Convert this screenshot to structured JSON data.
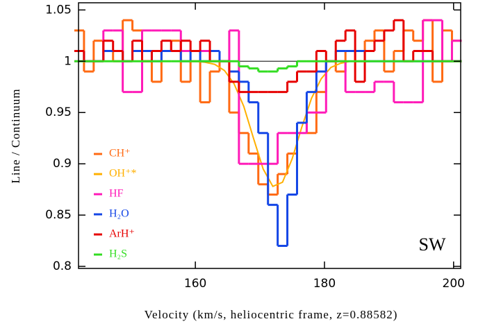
{
  "chart_data": {
    "type": "line",
    "xlabel": "Velocity (km/s, heliocentric frame, z=0.88582)",
    "ylabel": "Line / Continuum",
    "annotation": "SW",
    "xlim": [
      141.9,
      201.1
    ],
    "ylim": [
      0.798,
      1.057
    ],
    "xticks": [
      160,
      180,
      200
    ],
    "yticks": [
      0.8,
      0.85,
      0.9,
      0.95,
      1,
      1.05
    ],
    "hline": 1,
    "legend": "lower left",
    "x": [
      142,
      143.5,
      145,
      146.5,
      148,
      149.5,
      151,
      152.5,
      154,
      155.5,
      157,
      158.5,
      160,
      161.5,
      163,
      164.5,
      166,
      167.5,
      169,
      170.5,
      172,
      173.5,
      175,
      176.5,
      178,
      179.5,
      181,
      182.5,
      184,
      185.5,
      187,
      188.5,
      190,
      191.5,
      193,
      194.5,
      196,
      197.5,
      199,
      200.5
    ],
    "series": [
      {
        "name": "CH⁺",
        "color": "#ff6a13",
        "step": true,
        "values": [
          1.03,
          0.99,
          1.02,
          1.01,
          1.0,
          1.04,
          1.03,
          1.0,
          0.98,
          1.01,
          1.02,
          0.98,
          1.0,
          0.96,
          0.99,
          1.0,
          0.95,
          0.93,
          0.91,
          0.88,
          0.87,
          0.89,
          0.91,
          0.94,
          0.93,
          0.97,
          1.0,
          0.99,
          1.01,
          1.0,
          1.02,
          1.03,
          0.99,
          1.01,
          1.03,
          1.02,
          1.04,
          0.98,
          1.03,
          1.02
        ]
      },
      {
        "name": "OH⁺*",
        "color": "#ffb000",
        "step": false,
        "values": [
          1.0,
          1.0,
          1.0,
          1.0,
          1.0,
          1.0,
          1.0,
          1.0,
          1.0,
          1.0,
          1.0,
          1.0,
          1.0,
          0.999,
          0.997,
          0.991,
          0.978,
          0.956,
          0.925,
          0.895,
          0.878,
          0.882,
          0.905,
          0.936,
          0.964,
          0.983,
          0.994,
          0.998,
          1.0,
          1.0,
          1.0,
          1.0,
          1.0,
          1.0,
          1.0,
          1.0,
          1.0,
          1.0,
          1.0,
          1.0
        ]
      },
      {
        "name": "HF",
        "color": "#ff1ab8",
        "step": true,
        "values": [
          1.0,
          1.0,
          1.0,
          1.03,
          1.03,
          0.97,
          0.97,
          1.03,
          1.03,
          1.03,
          1.03,
          1.01,
          1.01,
          1.01,
          1.01,
          1.0,
          1.03,
          0.9,
          0.9,
          0.9,
          0.9,
          0.93,
          0.93,
          0.93,
          0.95,
          0.95,
          1.0,
          1.0,
          0.97,
          0.97,
          0.97,
          0.98,
          0.98,
          0.96,
          0.96,
          0.96,
          1.04,
          1.04,
          1.0,
          1.02
        ]
      },
      {
        "name": "H₂O",
        "color": "#1446e6",
        "step": true,
        "values": [
          1.01,
          1.0,
          1.0,
          1.01,
          1.01,
          1.0,
          1.01,
          1.01,
          1.0,
          1.01,
          1.01,
          1.0,
          1.01,
          1.0,
          1.01,
          1.0,
          0.99,
          0.98,
          0.96,
          0.93,
          0.86,
          0.82,
          0.87,
          0.94,
          0.97,
          0.99,
          1.0,
          1.01,
          1.01,
          1.01,
          1.0,
          1.0,
          1.0,
          1.0,
          1.0,
          1.0,
          1.0,
          1.0,
          1.0,
          1.0
        ]
      },
      {
        "name": "ArH⁺",
        "color": "#e60000",
        "step": true,
        "values": [
          1.01,
          1.0,
          1.0,
          1.02,
          1.01,
          1.0,
          1.02,
          1.0,
          1.01,
          1.02,
          1.01,
          1.02,
          1.01,
          1.02,
          1.0,
          1.0,
          0.98,
          0.97,
          0.97,
          0.97,
          0.97,
          0.97,
          0.98,
          0.99,
          0.99,
          1.01,
          1.0,
          1.02,
          1.03,
          0.98,
          1.01,
          1.02,
          1.03,
          1.04,
          1.0,
          1.01,
          1.01,
          1.0,
          1.0,
          1.0
        ]
      },
      {
        "name": "H₂S",
        "color": "#33dd22",
        "step": true,
        "values": [
          1.0,
          1.0,
          1.0,
          1.0,
          1.0,
          1.0,
          1.0,
          1.0,
          1.0,
          1.0,
          1.0,
          1.0,
          1.0,
          1.0,
          1.0,
          1.0,
          1.0,
          0.995,
          0.993,
          0.99,
          0.99,
          0.993,
          0.995,
          1.0,
          1.0,
          1.0,
          1.0,
          1.0,
          1.0,
          1.0,
          1.0,
          1.0,
          1.0,
          1.0,
          1.0,
          1.0,
          1.0,
          1.0,
          1.0,
          1.0
        ]
      }
    ]
  }
}
